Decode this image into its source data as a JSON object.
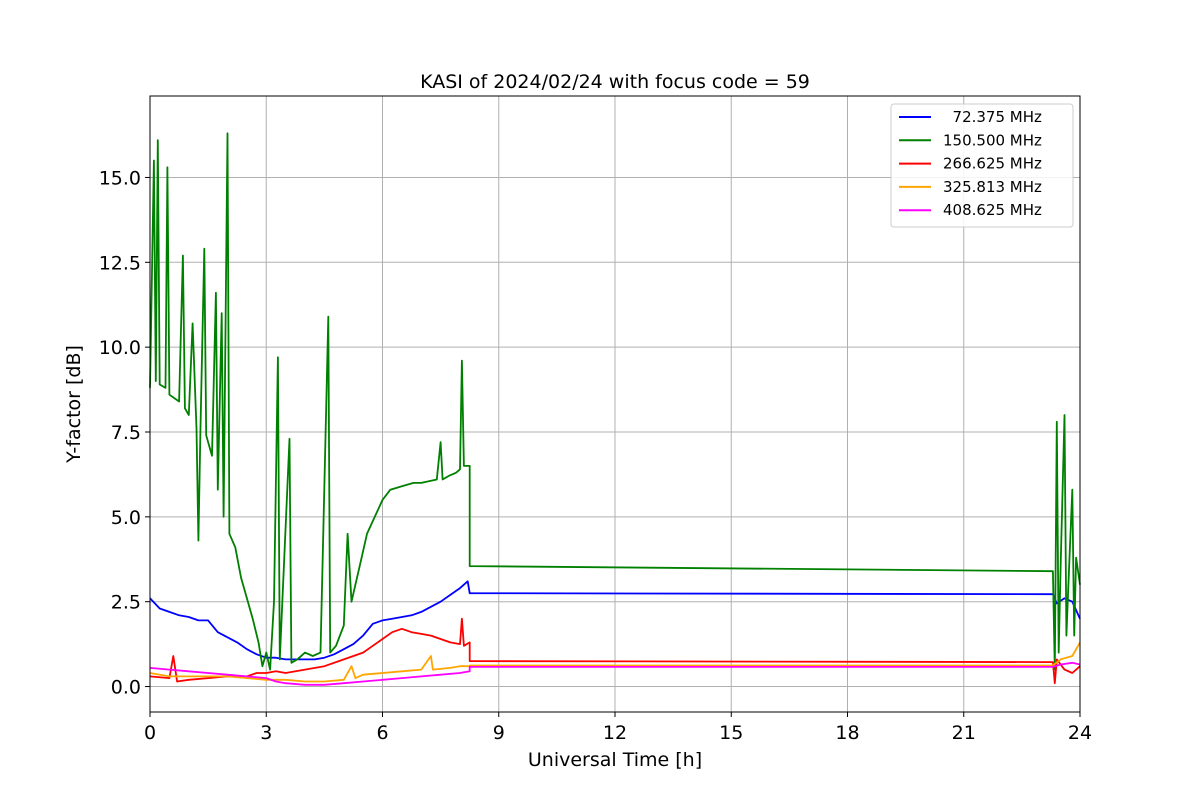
{
  "chart_data": {
    "type": "line",
    "title": "KASI of 2024/02/24 with focus code = 59",
    "xlabel": "Universal Time [h]",
    "ylabel": "Y-factor [dB]",
    "xlim": [
      0,
      24
    ],
    "ylim": [
      -0.75,
      17.4
    ],
    "xticks": [
      0,
      3,
      6,
      9,
      12,
      15,
      18,
      21,
      24
    ],
    "xtick_labels": [
      "0",
      "3",
      "6",
      "9",
      "12",
      "15",
      "18",
      "21",
      "24"
    ],
    "yticks": [
      0,
      2.5,
      5,
      7.5,
      10,
      12.5,
      15
    ],
    "ytick_labels": [
      "0.0",
      "2.5",
      "5.0",
      "7.5",
      "10.0",
      "12.5",
      "15.0"
    ],
    "grid": true,
    "legend_position": "top-right",
    "series": [
      {
        "name": "72.375 MHz",
        "legend_label": "  72.375 MHz",
        "color": "#0000ff",
        "points": [
          [
            0,
            2.6
          ],
          [
            0.25,
            2.3
          ],
          [
            0.5,
            2.2
          ],
          [
            0.75,
            2.1
          ],
          [
            1.0,
            2.05
          ],
          [
            1.25,
            1.95
          ],
          [
            1.5,
            1.95
          ],
          [
            1.75,
            1.6
          ],
          [
            2.0,
            1.45
          ],
          [
            2.25,
            1.3
          ],
          [
            2.5,
            1.1
          ],
          [
            2.75,
            0.95
          ],
          [
            3.0,
            0.85
          ],
          [
            3.25,
            0.85
          ],
          [
            3.5,
            0.8
          ],
          [
            3.75,
            0.8
          ],
          [
            4.0,
            0.8
          ],
          [
            4.25,
            0.8
          ],
          [
            4.5,
            0.85
          ],
          [
            4.75,
            0.95
          ],
          [
            5.0,
            1.1
          ],
          [
            5.25,
            1.25
          ],
          [
            5.5,
            1.5
          ],
          [
            5.75,
            1.85
          ],
          [
            6.0,
            1.95
          ],
          [
            6.25,
            2.0
          ],
          [
            6.5,
            2.05
          ],
          [
            6.75,
            2.1
          ],
          [
            7.0,
            2.2
          ],
          [
            7.25,
            2.35
          ],
          [
            7.5,
            2.5
          ],
          [
            7.75,
            2.7
          ],
          [
            8.0,
            2.9
          ],
          [
            8.2,
            3.1
          ],
          [
            8.25,
            2.75
          ],
          [
            23.3,
            2.72
          ],
          [
            23.4,
            2.45
          ],
          [
            23.6,
            2.6
          ],
          [
            23.8,
            2.5
          ],
          [
            24.0,
            2.0
          ]
        ]
      },
      {
        "name": "150.500 MHz",
        "legend_label": "150.500 MHz",
        "color": "#008000",
        "points": [
          [
            0,
            8.8
          ],
          [
            0.1,
            15.5
          ],
          [
            0.15,
            9.0
          ],
          [
            0.2,
            16.1
          ],
          [
            0.25,
            8.9
          ],
          [
            0.4,
            8.8
          ],
          [
            0.45,
            15.3
          ],
          [
            0.5,
            8.6
          ],
          [
            0.75,
            8.4
          ],
          [
            0.85,
            12.7
          ],
          [
            0.9,
            8.2
          ],
          [
            1.0,
            8.0
          ],
          [
            1.1,
            10.7
          ],
          [
            1.2,
            7.6
          ],
          [
            1.25,
            4.3
          ],
          [
            1.3,
            7.5
          ],
          [
            1.4,
            12.9
          ],
          [
            1.45,
            7.4
          ],
          [
            1.6,
            6.8
          ],
          [
            1.7,
            11.6
          ],
          [
            1.75,
            5.8
          ],
          [
            1.85,
            11.0
          ],
          [
            1.9,
            5.0
          ],
          [
            2.0,
            16.3
          ],
          [
            2.05,
            4.5
          ],
          [
            2.2,
            4.1
          ],
          [
            2.35,
            3.2
          ],
          [
            2.5,
            2.6
          ],
          [
            2.65,
            2.0
          ],
          [
            2.8,
            1.3
          ],
          [
            2.9,
            0.6
          ],
          [
            3.0,
            1.0
          ],
          [
            3.1,
            0.5
          ],
          [
            3.2,
            2.5
          ],
          [
            3.3,
            9.7
          ],
          [
            3.35,
            0.8
          ],
          [
            3.6,
            7.3
          ],
          [
            3.65,
            0.7
          ],
          [
            3.8,
            0.8
          ],
          [
            4.0,
            1.0
          ],
          [
            4.2,
            0.9
          ],
          [
            4.4,
            1.0
          ],
          [
            4.6,
            10.9
          ],
          [
            4.65,
            1.0
          ],
          [
            4.8,
            1.2
          ],
          [
            5.0,
            1.8
          ],
          [
            5.1,
            4.5
          ],
          [
            5.2,
            2.5
          ],
          [
            5.4,
            3.5
          ],
          [
            5.6,
            4.5
          ],
          [
            5.8,
            5.0
          ],
          [
            6.0,
            5.5
          ],
          [
            6.2,
            5.8
          ],
          [
            6.5,
            5.9
          ],
          [
            6.8,
            6.0
          ],
          [
            7.0,
            6.0
          ],
          [
            7.4,
            6.1
          ],
          [
            7.5,
            7.2
          ],
          [
            7.55,
            6.1
          ],
          [
            7.7,
            6.2
          ],
          [
            7.9,
            6.3
          ],
          [
            8.0,
            6.4
          ],
          [
            8.05,
            9.6
          ],
          [
            8.1,
            6.5
          ],
          [
            8.25,
            6.5
          ],
          [
            8.25,
            3.55
          ],
          [
            23.3,
            3.4
          ],
          [
            23.35,
            0.5
          ],
          [
            23.4,
            7.8
          ],
          [
            23.45,
            1.0
          ],
          [
            23.5,
            3.5
          ],
          [
            23.6,
            8.0
          ],
          [
            23.65,
            1.5
          ],
          [
            23.7,
            3.0
          ],
          [
            23.8,
            5.8
          ],
          [
            23.85,
            1.5
          ],
          [
            23.9,
            3.8
          ],
          [
            24.0,
            3.0
          ]
        ]
      },
      {
        "name": "266.625 MHz",
        "legend_label": "266.625 MHz",
        "color": "#ff0000",
        "points": [
          [
            0,
            0.3
          ],
          [
            0.5,
            0.25
          ],
          [
            0.6,
            0.9
          ],
          [
            0.7,
            0.15
          ],
          [
            1.0,
            0.2
          ],
          [
            1.5,
            0.25
          ],
          [
            2.0,
            0.3
          ],
          [
            2.5,
            0.3
          ],
          [
            2.75,
            0.4
          ],
          [
            3.0,
            0.4
          ],
          [
            3.25,
            0.45
          ],
          [
            3.5,
            0.4
          ],
          [
            4.0,
            0.5
          ],
          [
            4.5,
            0.6
          ],
          [
            5.0,
            0.8
          ],
          [
            5.5,
            1.0
          ],
          [
            5.75,
            1.2
          ],
          [
            6.0,
            1.4
          ],
          [
            6.25,
            1.6
          ],
          [
            6.5,
            1.7
          ],
          [
            6.75,
            1.6
          ],
          [
            7.0,
            1.55
          ],
          [
            7.25,
            1.5
          ],
          [
            7.5,
            1.4
          ],
          [
            7.75,
            1.3
          ],
          [
            8.0,
            1.25
          ],
          [
            8.05,
            2.0
          ],
          [
            8.1,
            1.2
          ],
          [
            8.25,
            1.3
          ],
          [
            8.25,
            0.75
          ],
          [
            23.3,
            0.72
          ],
          [
            23.35,
            0.1
          ],
          [
            23.4,
            0.8
          ],
          [
            23.6,
            0.5
          ],
          [
            23.8,
            0.4
          ],
          [
            24.0,
            0.6
          ]
        ]
      },
      {
        "name": "325.813 MHz",
        "legend_label": "325.813 MHz",
        "color": "#ffa500",
        "points": [
          [
            0,
            0.4
          ],
          [
            0.5,
            0.3
          ],
          [
            1.0,
            0.3
          ],
          [
            1.5,
            0.3
          ],
          [
            2.0,
            0.3
          ],
          [
            2.5,
            0.25
          ],
          [
            3.0,
            0.2
          ],
          [
            3.5,
            0.2
          ],
          [
            4.0,
            0.15
          ],
          [
            4.5,
            0.15
          ],
          [
            5.0,
            0.2
          ],
          [
            5.2,
            0.6
          ],
          [
            5.3,
            0.25
          ],
          [
            5.5,
            0.35
          ],
          [
            6.0,
            0.4
          ],
          [
            6.5,
            0.45
          ],
          [
            7.0,
            0.5
          ],
          [
            7.25,
            0.9
          ],
          [
            7.3,
            0.5
          ],
          [
            7.75,
            0.55
          ],
          [
            8.0,
            0.6
          ],
          [
            8.25,
            0.6
          ],
          [
            8.25,
            0.62
          ],
          [
            23.3,
            0.62
          ],
          [
            23.5,
            0.8
          ],
          [
            23.8,
            0.9
          ],
          [
            24.0,
            1.3
          ]
        ]
      },
      {
        "name": "408.625 MHz",
        "legend_label": "408.625 MHz",
        "color": "#ff00ff",
        "points": [
          [
            0,
            0.55
          ],
          [
            0.5,
            0.5
          ],
          [
            1.0,
            0.45
          ],
          [
            1.5,
            0.4
          ],
          [
            2.0,
            0.35
          ],
          [
            2.5,
            0.3
          ],
          [
            3.0,
            0.25
          ],
          [
            3.25,
            0.15
          ],
          [
            3.5,
            0.1
          ],
          [
            4.0,
            0.05
          ],
          [
            4.5,
            0.05
          ],
          [
            5.0,
            0.1
          ],
          [
            5.5,
            0.15
          ],
          [
            6.0,
            0.2
          ],
          [
            6.5,
            0.25
          ],
          [
            7.0,
            0.3
          ],
          [
            7.5,
            0.35
          ],
          [
            8.0,
            0.4
          ],
          [
            8.25,
            0.45
          ],
          [
            8.25,
            0.58
          ],
          [
            23.3,
            0.58
          ],
          [
            23.5,
            0.65
          ],
          [
            23.8,
            0.7
          ],
          [
            24.0,
            0.65
          ]
        ]
      }
    ]
  }
}
